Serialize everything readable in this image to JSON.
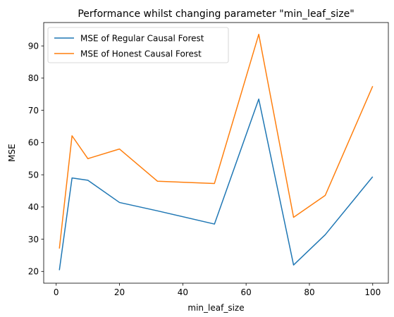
{
  "chart_data": {
    "type": "line",
    "title": "Performance whilst changing parameter \"min_leaf_size\"",
    "xlabel": "min_leaf_size",
    "ylabel": "MSE",
    "xlim": [
      -3.95,
      104.95
    ],
    "ylim": [
      16.35,
      97.25
    ],
    "xticks": [
      0,
      20,
      40,
      60,
      80,
      100
    ],
    "yticks": [
      20,
      30,
      40,
      50,
      60,
      70,
      80,
      90
    ],
    "grid": false,
    "legend_position": "top-left",
    "series": [
      {
        "name": "MSE of Regular Causal Forest",
        "color": "#1f77b4",
        "x": [
          1,
          5,
          10,
          20,
          32,
          50,
          64,
          75,
          85,
          100
        ],
        "y": [
          20.4,
          49.0,
          48.3,
          41.4,
          38.8,
          34.7,
          73.5,
          22.0,
          31.4,
          49.4
        ]
      },
      {
        "name": "MSE of Honest Causal Forest",
        "color": "#ff7f0e",
        "x": [
          1,
          5,
          10,
          20,
          32,
          50,
          64,
          75,
          85,
          100
        ],
        "y": [
          27.1,
          62.1,
          55.0,
          58.0,
          48.0,
          47.3,
          93.6,
          36.8,
          43.6,
          77.5
        ]
      }
    ]
  }
}
